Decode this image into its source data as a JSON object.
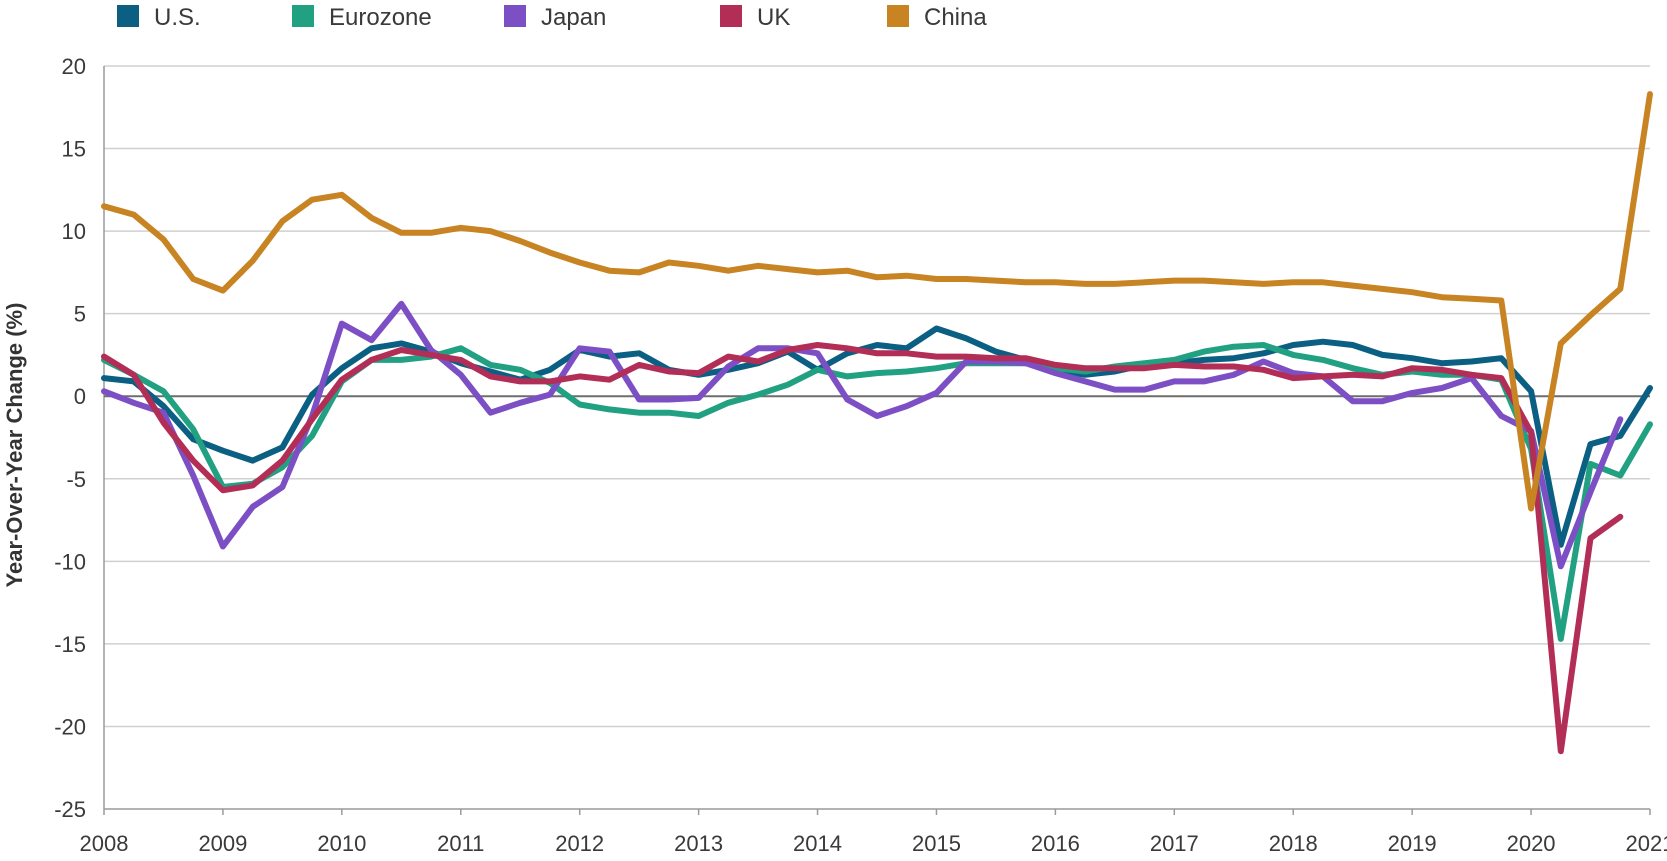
{
  "chart_data": {
    "type": "line",
    "title": "",
    "xlabel": "",
    "ylabel": "Year-Over-Year Change (%)",
    "ylim": [
      -25,
      20
    ],
    "xlim": [
      2008,
      2021
    ],
    "grid": "horizontal",
    "legend_position": "top",
    "y_ticks": [
      "20",
      "15",
      "10",
      "5",
      "0",
      "-5",
      "-10",
      "-15",
      "-20",
      "-25"
    ],
    "x_ticks": [
      "2008",
      "2009",
      "2010",
      "2011",
      "2012",
      "2013",
      "2014",
      "2015",
      "2016",
      "2017",
      "2018",
      "2019",
      "2020",
      "2021"
    ],
    "x_start": 2008,
    "x_step": 0.25,
    "series": [
      {
        "name": "U.S.",
        "color": "#0a5f82",
        "values": [
          1.1,
          0.9,
          -0.6,
          -2.6,
          -3.3,
          -3.9,
          -3.1,
          0.1,
          1.7,
          2.9,
          3.2,
          2.7,
          2.0,
          1.5,
          1.0,
          1.6,
          2.8,
          2.4,
          2.6,
          1.6,
          1.3,
          1.6,
          2.0,
          2.7,
          1.6,
          2.6,
          3.1,
          2.9,
          4.1,
          3.5,
          2.7,
          2.2,
          1.6,
          1.3,
          1.5,
          1.9,
          2.0,
          2.2,
          2.3,
          2.6,
          3.1,
          3.3,
          3.1,
          2.5,
          2.3,
          2.0,
          2.1,
          2.3,
          0.3,
          -9.0,
          -2.9,
          -2.4,
          0.5
        ]
      },
      {
        "name": "Eurozone",
        "color": "#21a182",
        "values": [
          2.2,
          1.3,
          0.3,
          -2.0,
          -5.5,
          -5.3,
          -4.3,
          -2.4,
          0.9,
          2.2,
          2.2,
          2.4,
          2.9,
          1.9,
          1.6,
          0.8,
          -0.5,
          -0.8,
          -1.0,
          -1.0,
          -1.2,
          -0.4,
          0.1,
          0.7,
          1.6,
          1.2,
          1.4,
          1.5,
          1.7,
          2.0,
          2.0,
          2.0,
          1.7,
          1.5,
          1.8,
          2.0,
          2.2,
          2.7,
          3.0,
          3.1,
          2.5,
          2.2,
          1.7,
          1.3,
          1.5,
          1.3,
          1.3,
          1.0,
          -3.2,
          -14.7,
          -4.1,
          -4.8,
          -1.7
        ]
      },
      {
        "name": "Japan",
        "color": "#7c4fc4",
        "values": [
          0.3,
          -0.4,
          -1.0,
          -4.8,
          -9.1,
          -6.7,
          -5.5,
          -1.2,
          4.4,
          3.4,
          5.6,
          2.8,
          1.3,
          -1.0,
          -0.4,
          0.1,
          2.9,
          2.7,
          -0.2,
          -0.2,
          -0.1,
          1.8,
          2.9,
          2.9,
          2.6,
          -0.2,
          -1.2,
          -0.6,
          0.2,
          2.1,
          2.1,
          2.0,
          1.4,
          0.9,
          0.4,
          0.4,
          0.9,
          0.9,
          1.3,
          2.1,
          1.4,
          1.2,
          -0.3,
          -0.3,
          0.2,
          0.5,
          1.1,
          -1.2,
          -2.1,
          -10.3,
          -5.8,
          -1.4
        ]
      },
      {
        "name": "UK",
        "color": "#b22e57",
        "values": [
          2.4,
          1.3,
          -1.6,
          -3.9,
          -5.7,
          -5.4,
          -3.9,
          -1.4,
          1.0,
          2.2,
          2.8,
          2.5,
          2.2,
          1.2,
          0.9,
          0.9,
          1.2,
          1.0,
          1.9,
          1.5,
          1.4,
          2.4,
          2.1,
          2.8,
          3.1,
          2.9,
          2.6,
          2.6,
          2.4,
          2.4,
          2.3,
          2.3,
          1.9,
          1.7,
          1.7,
          1.7,
          1.9,
          1.8,
          1.8,
          1.6,
          1.1,
          1.2,
          1.3,
          1.2,
          1.7,
          1.6,
          1.3,
          1.1,
          -2.2,
          -21.5,
          -8.6,
          -7.3
        ]
      },
      {
        "name": "China",
        "color": "#c88423",
        "values": [
          11.5,
          11.0,
          9.5,
          7.1,
          6.4,
          8.2,
          10.6,
          11.9,
          12.2,
          10.8,
          9.9,
          9.9,
          10.2,
          10.0,
          9.4,
          8.7,
          8.1,
          7.6,
          7.5,
          8.1,
          7.9,
          7.6,
          7.9,
          7.7,
          7.5,
          7.6,
          7.2,
          7.3,
          7.1,
          7.1,
          7.0,
          6.9,
          6.9,
          6.8,
          6.8,
          6.9,
          7.0,
          7.0,
          6.9,
          6.8,
          6.9,
          6.9,
          6.7,
          6.5,
          6.3,
          6.0,
          5.9,
          5.8,
          -6.8,
          3.2,
          4.9,
          6.5,
          18.3
        ]
      }
    ]
  }
}
